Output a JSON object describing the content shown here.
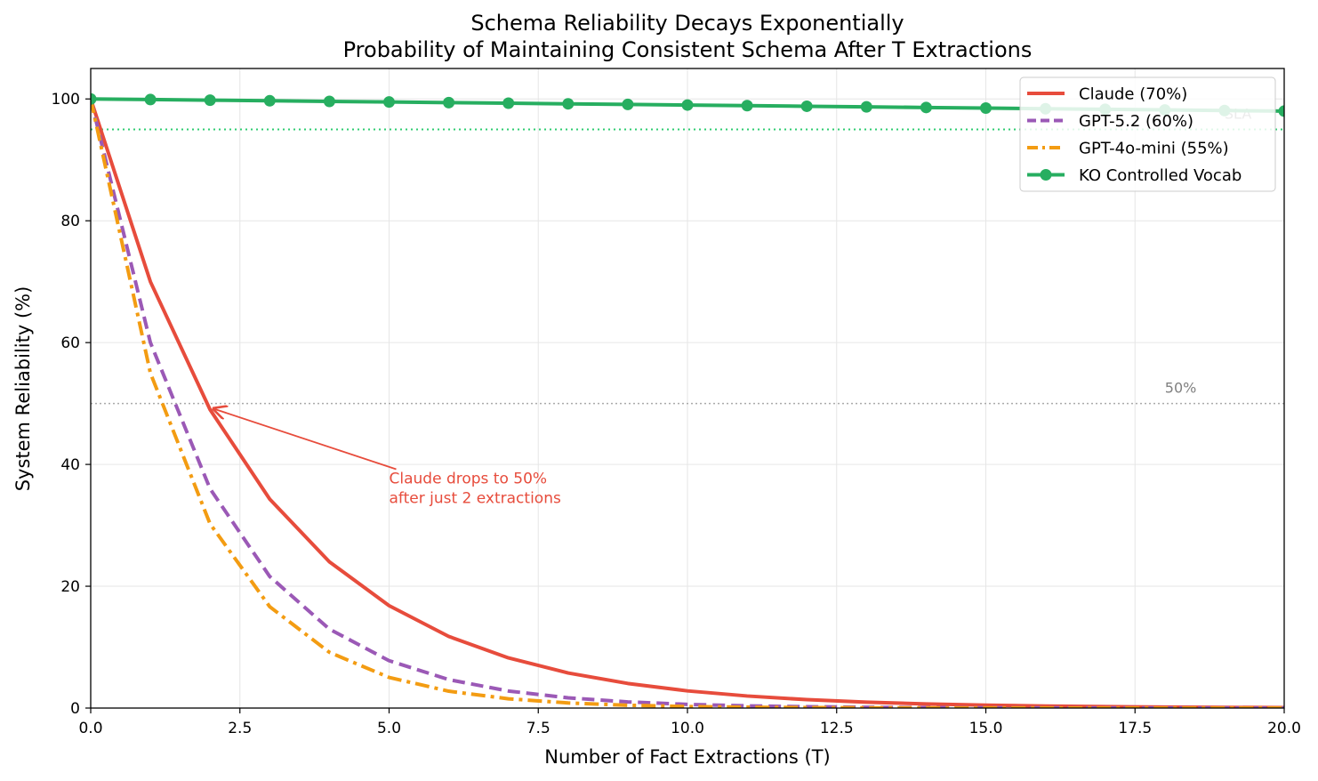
{
  "chart_data": {
    "type": "line",
    "title": "Schema Reliability Decays Exponentially",
    "subtitle": "Probability of Maintaining Consistent Schema After T Extractions",
    "xlabel": "Number of Fact Extractions (T)",
    "ylabel": "System Reliability (%)",
    "xlim": [
      0,
      20
    ],
    "ylim": [
      0,
      105
    ],
    "xticks": [
      0.0,
      2.5,
      5.0,
      7.5,
      10.0,
      12.5,
      15.0,
      17.5,
      20.0
    ],
    "xtick_labels": [
      "0.0",
      "2.5",
      "5.0",
      "7.5",
      "10.0",
      "12.5",
      "15.0",
      "17.5",
      "20.0"
    ],
    "yticks": [
      0,
      20,
      40,
      60,
      80,
      100
    ],
    "ytick_labels": [
      "0",
      "20",
      "40",
      "60",
      "80",
      "100"
    ],
    "grid": true,
    "legend_position": "top-right",
    "x": [
      0,
      1,
      2,
      3,
      4,
      5,
      6,
      7,
      8,
      9,
      10,
      11,
      12,
      13,
      14,
      15,
      16,
      17,
      18,
      19,
      20
    ],
    "series": [
      {
        "name": "Claude (70%)",
        "color": "#e74c3c",
        "style": "solid",
        "values": [
          100,
          70,
          49,
          34.3,
          24.01,
          16.81,
          11.76,
          8.24,
          5.76,
          4.04,
          2.82,
          1.98,
          1.38,
          0.97,
          0.68,
          0.47,
          0.33,
          0.23,
          0.16,
          0.11,
          0.08
        ]
      },
      {
        "name": "GPT-5.2 (60%)",
        "color": "#9b59b6",
        "style": "dashed",
        "values": [
          100,
          60,
          36,
          21.6,
          12.96,
          7.78,
          4.67,
          2.8,
          1.68,
          1.01,
          0.6,
          0.36,
          0.22,
          0.13,
          0.08,
          0.05,
          0.03,
          0.02,
          0.01,
          0.01,
          0.0
        ]
      },
      {
        "name": "GPT-4o-mini (55%)",
        "color": "#f39c12",
        "style": "dashdot",
        "values": [
          100,
          55,
          30.25,
          16.64,
          9.15,
          5.03,
          2.77,
          1.52,
          0.84,
          0.46,
          0.25,
          0.14,
          0.08,
          0.04,
          0.02,
          0.01,
          0.01,
          0.0,
          0.0,
          0.0,
          0.0
        ]
      },
      {
        "name": "KO Controlled Vocab",
        "color": "#27ae60",
        "style": "solid-markers",
        "values": [
          100,
          99.9,
          99.8,
          99.7,
          99.6,
          99.5,
          99.4,
          99.3,
          99.2,
          99.1,
          99.0,
          98.9,
          98.8,
          98.7,
          98.6,
          98.5,
          98.4,
          98.3,
          98.2,
          98.1,
          98.0
        ]
      }
    ],
    "reference_lines": [
      {
        "y": 95,
        "label": "SLA",
        "label_x": 19,
        "color": "#2ecc71",
        "style": "dotted"
      },
      {
        "y": 50,
        "label": "50%",
        "label_x": 18,
        "color": "#aaaaaa",
        "style": "dotted"
      }
    ],
    "annotation": {
      "line1": "Claude drops to 50%",
      "line2": "after just 2 extractions",
      "point": [
        2,
        49
      ],
      "text_pos": [
        5,
        36
      ],
      "color": "#e74c3c"
    }
  }
}
